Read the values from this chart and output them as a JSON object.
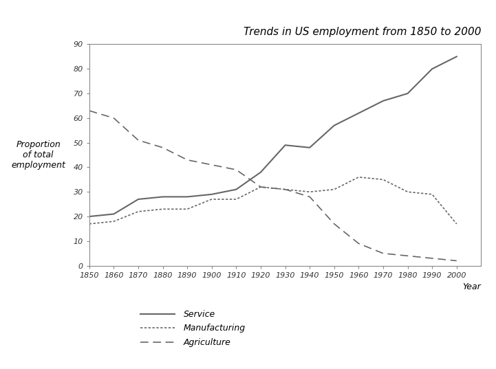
{
  "title": "Trends in US employment from 1850 to 2000",
  "xlabel": "Year",
  "ylabel_lines": [
    "Proportion",
    "of total",
    "employment"
  ],
  "xlim": [
    1850,
    2010
  ],
  "ylim": [
    0,
    90
  ],
  "xticks": [
    1850,
    1860,
    1870,
    1880,
    1890,
    1900,
    1910,
    1920,
    1930,
    1940,
    1950,
    1960,
    1970,
    1980,
    1990,
    2000
  ],
  "yticks": [
    0,
    10,
    20,
    30,
    40,
    50,
    60,
    70,
    80,
    90
  ],
  "service": {
    "x": [
      1850,
      1860,
      1870,
      1880,
      1890,
      1900,
      1910,
      1920,
      1930,
      1940,
      1950,
      1960,
      1970,
      1980,
      1990,
      2000
    ],
    "y": [
      20,
      21,
      27,
      28,
      28,
      29,
      31,
      38,
      49,
      48,
      57,
      62,
      67,
      70,
      80,
      85
    ],
    "label": "Service",
    "color": "#666666",
    "linewidth": 1.5
  },
  "manufacturing": {
    "x": [
      1850,
      1860,
      1870,
      1880,
      1890,
      1900,
      1910,
      1920,
      1930,
      1940,
      1950,
      1960,
      1970,
      1980,
      1990,
      2000
    ],
    "y": [
      17,
      18,
      22,
      23,
      23,
      27,
      27,
      32,
      31,
      30,
      31,
      36,
      35,
      30,
      29,
      17
    ],
    "label": "Manufacturing",
    "color": "#666666",
    "linewidth": 1.2
  },
  "agriculture": {
    "x": [
      1850,
      1860,
      1870,
      1880,
      1890,
      1900,
      1910,
      1920,
      1930,
      1940,
      1950,
      1960,
      1970,
      1980,
      1990,
      2000
    ],
    "y": [
      63,
      60,
      51,
      48,
      43,
      41,
      39,
      32,
      31,
      28,
      17,
      9,
      5,
      4,
      3,
      2
    ],
    "label": "Agriculture",
    "color": "#666666",
    "linewidth": 1.2
  },
  "background_color": "#ffffff",
  "title_fontsize": 11,
  "axis_label_fontsize": 9,
  "tick_fontsize": 8,
  "legend_fontsize": 9
}
